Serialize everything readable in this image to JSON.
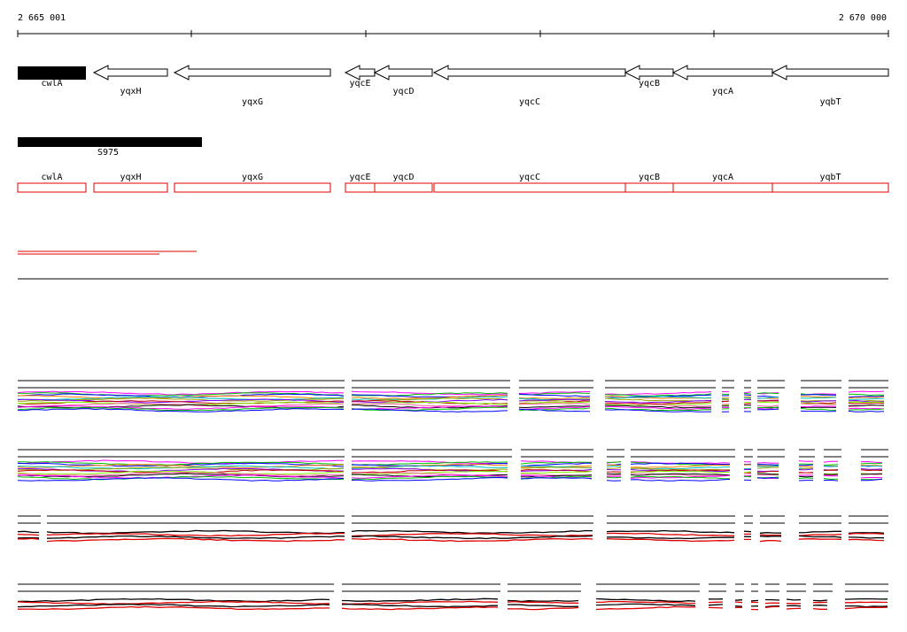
{
  "ruler": {
    "start": "2 665 001",
    "end": "2 670 000"
  },
  "genes": [
    {
      "label": "cwlA"
    },
    {
      "label": "yqxH"
    },
    {
      "label": "yqxG"
    },
    {
      "label": "yqcE"
    },
    {
      "label": "yqcD"
    },
    {
      "label": "yqcC"
    },
    {
      "label": "yqcB"
    },
    {
      "label": "yqcA"
    },
    {
      "label": "yqbT"
    }
  ],
  "segment": {
    "label": "S975"
  }
}
